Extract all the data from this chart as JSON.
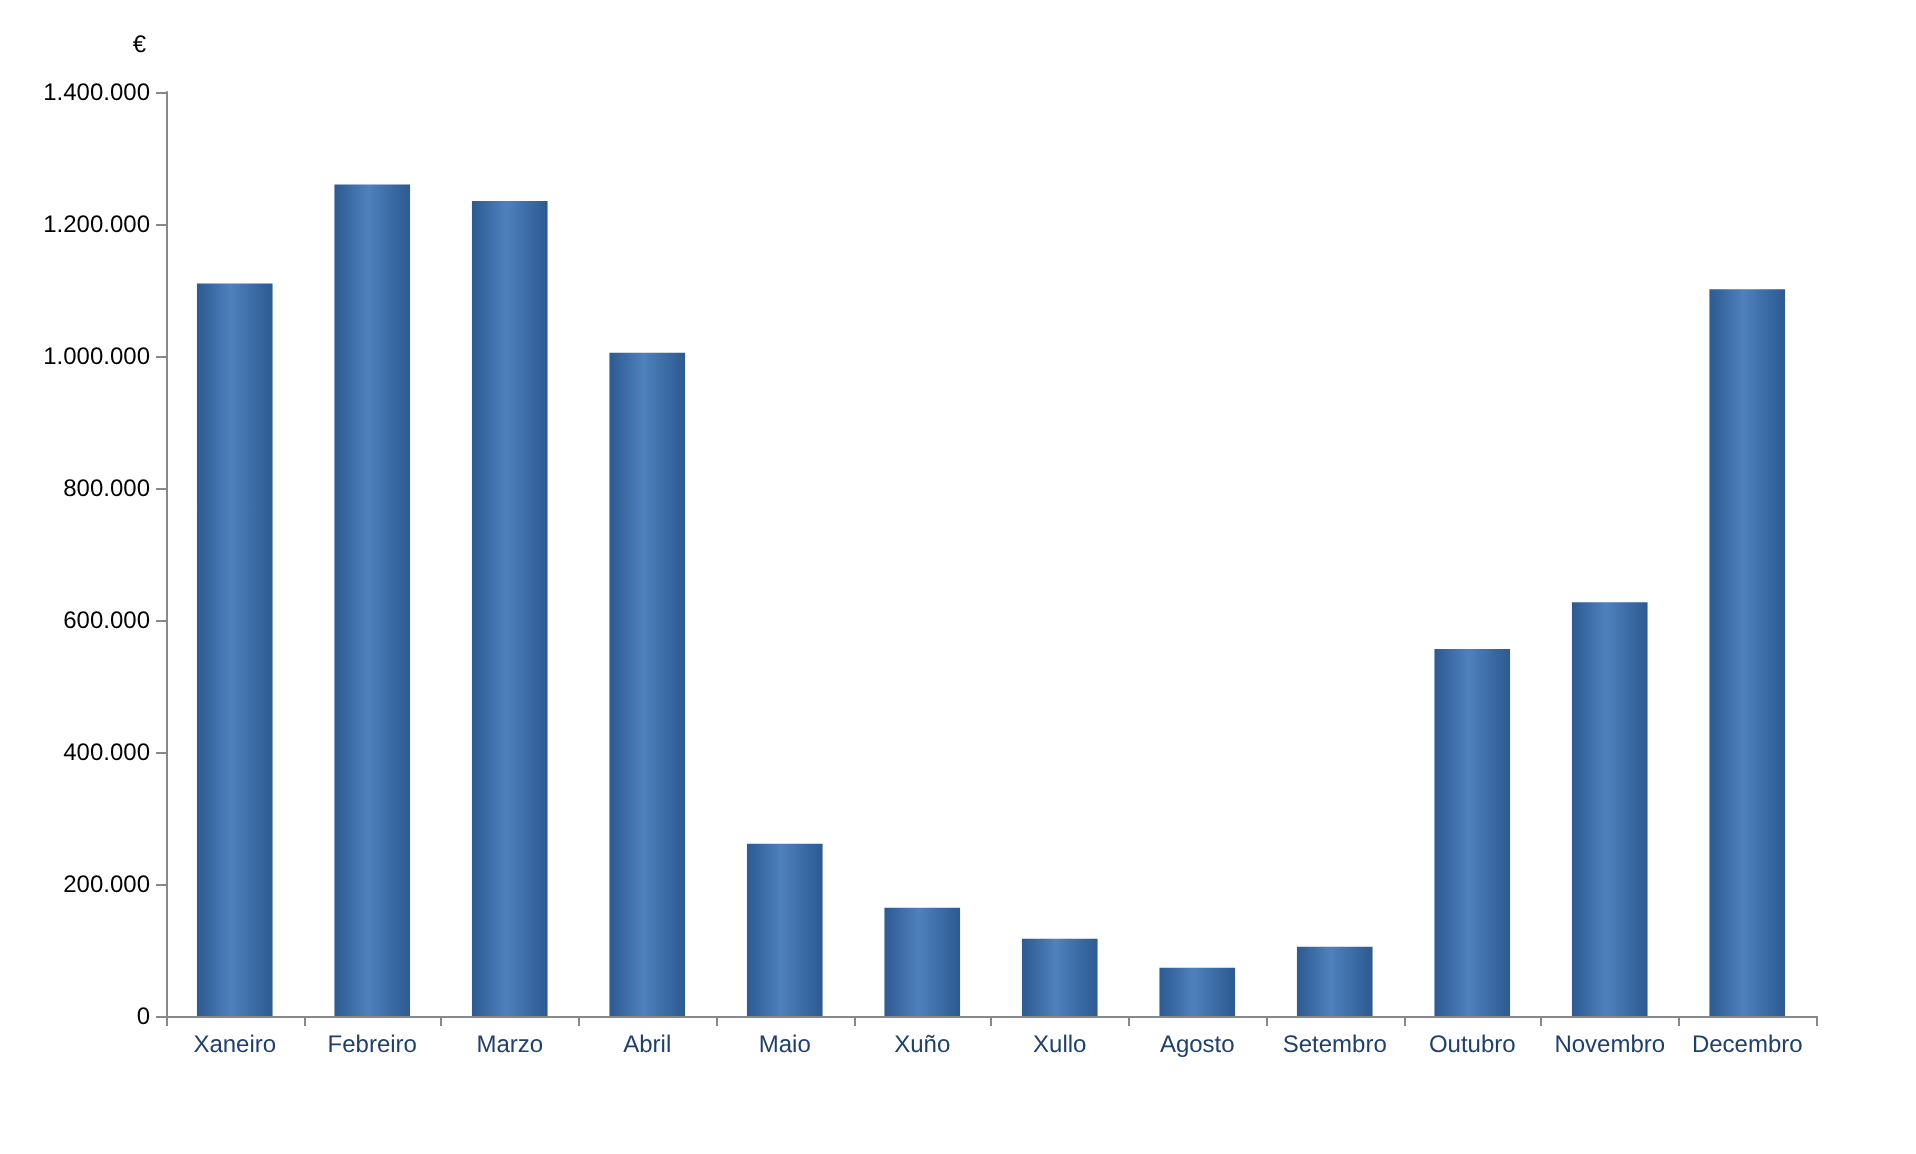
{
  "chart_data": {
    "type": "bar",
    "ylabel": "€",
    "categories": [
      "Xaneiro",
      "Febreiro",
      "Marzo",
      "Abril",
      "Maio",
      "Xuño",
      "Xullo",
      "Agosto",
      "Setembro",
      "Outubro",
      "Novembro",
      "Decembro"
    ],
    "values": [
      1110000,
      1260000,
      1235000,
      1005000,
      261000,
      164000,
      117000,
      73000,
      105000,
      556000,
      627000,
      1101000
    ],
    "color": "#4f81bd",
    "ylim": [
      0,
      1400000
    ],
    "yticks": [
      {
        "value": 0,
        "label": "0"
      },
      {
        "value": 200000,
        "label": "200.000"
      },
      {
        "value": 400000,
        "label": "400.000"
      },
      {
        "value": 600000,
        "label": "600.000"
      },
      {
        "value": 800000,
        "label": "800.000"
      },
      {
        "value": 1000000,
        "label": "1.000.000"
      },
      {
        "value": 1200000,
        "label": "1.200.000"
      },
      {
        "value": 1400000,
        "label": "1.400.000"
      }
    ],
    "grid": false
  }
}
